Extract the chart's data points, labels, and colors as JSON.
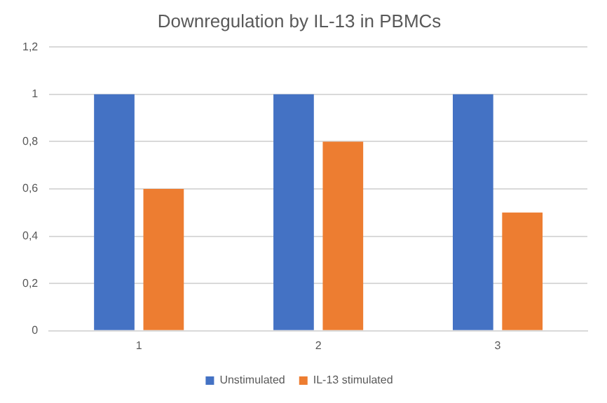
{
  "chart_data": {
    "type": "bar",
    "title": "Downregulation by IL-13 in PBMCs",
    "categories": [
      "1",
      "2",
      "3"
    ],
    "series": [
      {
        "name": "Unstimulated",
        "color": "#4472c4",
        "values": [
          1,
          1,
          1
        ]
      },
      {
        "name": "IL-13 stimulated",
        "color": "#ed7d31",
        "values": [
          0.6,
          0.8,
          0.5
        ]
      }
    ],
    "ylim": [
      0,
      1.2
    ],
    "yticks": [
      {
        "value": 0,
        "label": "0"
      },
      {
        "value": 0.2,
        "label": "0,2"
      },
      {
        "value": 0.4,
        "label": "0,4"
      },
      {
        "value": 0.6,
        "label": "0,6"
      },
      {
        "value": 0.8,
        "label": "0,8"
      },
      {
        "value": 1,
        "label": "1"
      },
      {
        "value": 1.2,
        "label": "1,2"
      }
    ],
    "grid": "y",
    "legend": "bottom"
  }
}
